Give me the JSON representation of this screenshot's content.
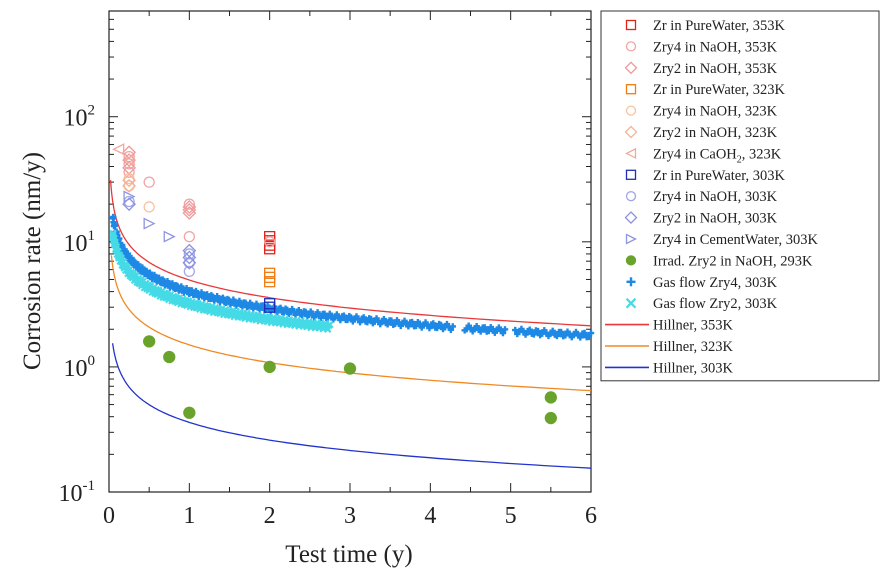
{
  "chart_data": {
    "type": "scatter",
    "xlabel": "Test time (y)",
    "ylabel": "Corrosion rate (nm/y)",
    "xlim": [
      0,
      6
    ],
    "ylim": [
      0.1,
      700
    ],
    "yscale": "log",
    "x_ticks": [
      0,
      1,
      2,
      3,
      4,
      5,
      6
    ],
    "y_ticks": [
      {
        "value": 0.1,
        "base": "10",
        "exp": "-1"
      },
      {
        "value": 1,
        "base": "10",
        "exp": "0"
      },
      {
        "value": 10,
        "base": "10",
        "exp": "1"
      },
      {
        "value": 100,
        "base": "10",
        "exp": "2"
      }
    ],
    "grid": false,
    "legend_position": "right",
    "series": [
      {
        "name": "Zr in PureWater, 353K",
        "marker": "square",
        "filled": false,
        "color": "#e2231a",
        "x": [
          2,
          2,
          2,
          2
        ],
        "y": [
          11,
          10.2,
          9.4,
          8.8
        ]
      },
      {
        "name": "Zry4 in NaOH, 353K",
        "marker": "circle",
        "filled": false,
        "color": "#f2a3a3",
        "x": [
          0.25,
          0.25,
          0.25,
          0.5,
          1,
          1,
          2
        ],
        "y": [
          48,
          42,
          36,
          30,
          20,
          11,
          10
        ]
      },
      {
        "name": "Zry2 in NaOH, 353K",
        "marker": "diamond",
        "filled": false,
        "color": "#ee9a9a",
        "x": [
          0.25,
          0.25,
          0.25,
          1,
          1,
          1
        ],
        "y": [
          52,
          45,
          39,
          19,
          18,
          17
        ]
      },
      {
        "name": "Zr in PureWater, 323K",
        "marker": "square",
        "filled": false,
        "color": "#f07c12",
        "x": [
          2,
          2,
          2
        ],
        "y": [
          5.6,
          5.2,
          4.8
        ]
      },
      {
        "name": "Zry4 in NaOH, 323K",
        "marker": "circle",
        "filled": false,
        "color": "#f7c3a0",
        "x": [
          0.25,
          0.25,
          0.5
        ],
        "y": [
          32,
          28,
          19
        ]
      },
      {
        "name": "Zry2 in NaOH, 323K",
        "marker": "diamond",
        "filled": false,
        "color": "#f5b296",
        "x": [
          0.25,
          0.25
        ],
        "y": [
          31,
          28
        ]
      },
      {
        "name": "Zry4 in CaOH2, 323K",
        "marker": "triangle-left",
        "filled": false,
        "color": "#f3a89a",
        "x": [
          0.12,
          0.25
        ],
        "y": [
          55,
          45
        ]
      },
      {
        "name": "Zr in PureWater, 303K",
        "marker": "square",
        "filled": false,
        "color": "#1c2fb8",
        "x": [
          2,
          2
        ],
        "y": [
          3.2,
          3.0
        ]
      },
      {
        "name": "Zry4 in NaOH, 303K",
        "marker": "circle",
        "filled": false,
        "color": "#a3a7e8",
        "x": [
          0.25,
          1,
          1,
          1
        ],
        "y": [
          21,
          8,
          6.8,
          5.8
        ]
      },
      {
        "name": "Zry2 in NaOH, 303K",
        "marker": "diamond",
        "filled": false,
        "color": "#8c92e0",
        "x": [
          0.25,
          1,
          1,
          1
        ],
        "y": [
          20,
          8.5,
          7.5,
          6.8
        ]
      },
      {
        "name": "Zry4 in CementWater, 303K",
        "marker": "triangle-right",
        "filled": false,
        "color": "#8f95e2",
        "x": [
          0.25,
          0.5,
          0.75
        ],
        "y": [
          23,
          14,
          11
        ]
      },
      {
        "name": "Irrad. Zry2 in NaOH, 293K",
        "marker": "circle",
        "filled": true,
        "color": "#6aa32c",
        "x": [
          0.5,
          0.75,
          1,
          2,
          3,
          5.5,
          5.5
        ],
        "y": [
          1.6,
          1.2,
          0.43,
          1.0,
          0.97,
          0.57,
          0.39
        ]
      },
      {
        "name": "Gas flow Zry4, 303K",
        "marker": "plus",
        "filled": true,
        "color": "#1e88e5",
        "trend": {
          "a": 4.0,
          "b": -0.45,
          "x_start": 0.05,
          "x_end": 6.0,
          "gaps": [
            [
              4.28,
              4.42
            ],
            [
              4.93,
              5.05
            ]
          ]
        }
      },
      {
        "name": "Gas flow Zry2, 303K",
        "marker": "cross",
        "filled": true,
        "color": "#45dbe6",
        "trend": {
          "a": 3.2,
          "b": -0.42,
          "x_start": 0.05,
          "x_end": 2.75
        }
      },
      {
        "name": "Hillner, 353K",
        "marker": "line",
        "color": "#e8383a",
        "line": {
          "a": 4.95,
          "b": -0.47,
          "x_start": 0.02,
          "x_end": 6
        }
      },
      {
        "name": "Hillner, 323K",
        "marker": "line",
        "color": "#f08a24",
        "line": {
          "a": 1.5,
          "b": -0.47,
          "x_start": 0.03,
          "x_end": 6
        }
      },
      {
        "name": "Hillner, 303K",
        "marker": "line",
        "color": "#2233cc",
        "line": {
          "a": 0.36,
          "b": -0.47,
          "x_start": 0.045,
          "x_end": 6
        }
      }
    ]
  }
}
